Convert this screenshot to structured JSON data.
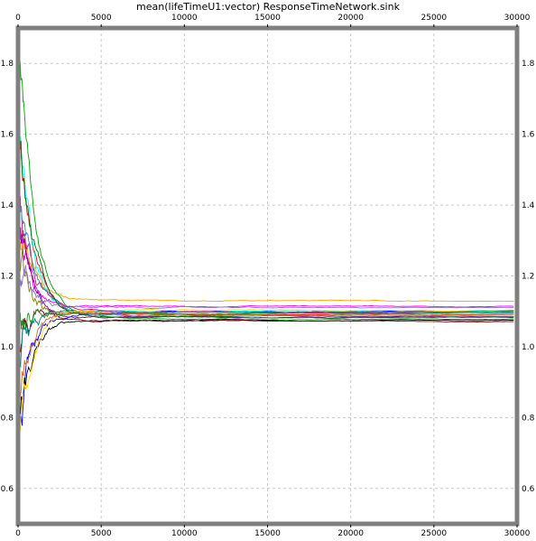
{
  "chart_data": {
    "type": "line",
    "title": "mean(lifeTimeU1:vector) ResponseTimeNetwork.sink",
    "xlabel": "",
    "ylabel": "",
    "xlim": [
      0,
      30000
    ],
    "ylim": [
      0.5,
      1.9
    ],
    "x_ticks": [
      0,
      5000,
      10000,
      15000,
      20000,
      25000,
      30000
    ],
    "y_ticks": [
      0.6,
      0.8,
      1.0,
      1.2,
      1.4,
      1.6,
      1.8
    ],
    "grid": true,
    "legend": "none",
    "frame_color": "#808080",
    "grid_color": "#c8c8c8",
    "x_end": 29800,
    "series": [
      {
        "color": "#ff0000",
        "start": 1.55,
        "final": 1.09
      },
      {
        "color": "#0000ff",
        "start": 0.75,
        "final": 1.1
      },
      {
        "color": "#00a000",
        "start": 1.85,
        "final": 1.08
      },
      {
        "color": "#ffa500",
        "start": 1.3,
        "final": 1.13
      },
      {
        "color": "#00ffff",
        "start": 1.6,
        "final": 1.1
      },
      {
        "color": "#ff00ff",
        "start": 1.4,
        "final": 1.115
      },
      {
        "color": "#000000",
        "start": 0.7,
        "final": 1.075
      },
      {
        "color": "#808000",
        "start": 1.2,
        "final": 1.09
      },
      {
        "color": "#800000",
        "start": 0.95,
        "final": 1.07
      },
      {
        "color": "#008080",
        "start": 0.9,
        "final": 1.095
      },
      {
        "color": "#800080",
        "start": 1.35,
        "final": 1.085
      },
      {
        "color": "#9370db",
        "start": 1.25,
        "final": 1.11
      },
      {
        "color": "#ffd700",
        "start": 0.65,
        "final": 1.105
      },
      {
        "color": "#c71585",
        "start": 1.45,
        "final": 1.098
      },
      {
        "color": "#228b22",
        "start": 1.1,
        "final": 1.1
      },
      {
        "color": "#4682b4",
        "start": 1.5,
        "final": 1.087
      },
      {
        "color": "#d2691e",
        "start": 0.85,
        "final": 1.092
      },
      {
        "color": "#006400",
        "start": 1.7,
        "final": 1.083
      }
    ]
  }
}
